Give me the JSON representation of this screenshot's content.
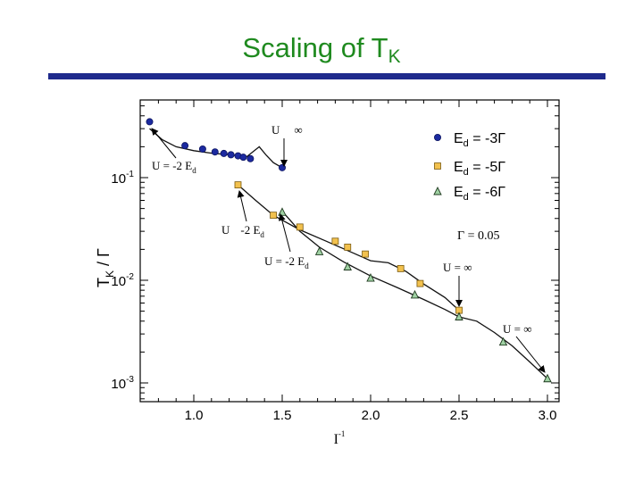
{
  "slide": {
    "title_main": "Scaling of T",
    "title_sub": "K",
    "colors": {
      "title": "#1f8a1f",
      "rule": "#1f2a8c"
    }
  },
  "chart_data": {
    "type": "scatter",
    "x": {
      "label_main": "I",
      "label_sup": "-1",
      "range": [
        0.7,
        3.0
      ],
      "ticks": [
        "1.0",
        "1.5",
        "2.0",
        "2.5",
        "3.0"
      ]
    },
    "y": {
      "label": "T",
      "label_sub": "K",
      "label_tail": " / Γ",
      "scale": "log",
      "range": [
        0.0007,
        0.5
      ],
      "ticks": [
        {
          "base": "10",
          "exp": "-1",
          "value": 0.1
        },
        {
          "base": "10",
          "exp": "-2",
          "value": 0.01
        },
        {
          "base": "10",
          "exp": "-3",
          "value": 0.001
        }
      ]
    },
    "series": [
      {
        "name_main": "E",
        "name_sub": "d",
        "name_tail": " = -3Γ",
        "marker": "circle",
        "color": "#1c2aa0",
        "points": [
          [
            0.75,
            0.35
          ],
          [
            0.95,
            0.205
          ],
          [
            1.05,
            0.19
          ],
          [
            1.12,
            0.178
          ],
          [
            1.17,
            0.172
          ],
          [
            1.21,
            0.167
          ],
          [
            1.25,
            0.163
          ],
          [
            1.28,
            0.158
          ],
          [
            1.32,
            0.153
          ],
          [
            1.5,
            0.125
          ]
        ],
        "curve": [
          [
            0.75,
            0.3
          ],
          [
            0.82,
            0.235
          ],
          [
            0.9,
            0.2
          ],
          [
            1.0,
            0.183
          ],
          [
            1.1,
            0.173
          ],
          [
            1.2,
            0.167
          ],
          [
            1.3,
            0.16
          ],
          [
            1.37,
            0.2
          ],
          [
            1.41,
            0.165
          ],
          [
            1.45,
            0.14
          ],
          [
            1.5,
            0.125
          ]
        ]
      },
      {
        "name_main": "E",
        "name_sub": "d",
        "name_tail": " = -5Γ",
        "marker": "square",
        "color": "#f2c14e",
        "points": [
          [
            1.25,
            0.085
          ],
          [
            1.45,
            0.043
          ],
          [
            1.6,
            0.033
          ],
          [
            1.8,
            0.024
          ],
          [
            1.87,
            0.021
          ],
          [
            1.97,
            0.018
          ],
          [
            2.17,
            0.013
          ],
          [
            2.28,
            0.0093
          ],
          [
            2.5,
            0.0051
          ]
        ],
        "curve": [
          [
            1.25,
            0.085
          ],
          [
            1.35,
            0.06
          ],
          [
            1.45,
            0.043
          ],
          [
            1.6,
            0.031
          ],
          [
            1.75,
            0.024
          ],
          [
            1.9,
            0.0185
          ],
          [
            2.0,
            0.0155
          ],
          [
            2.1,
            0.0148
          ],
          [
            2.2,
            0.0122
          ],
          [
            2.3,
            0.0092
          ],
          [
            2.42,
            0.0068
          ],
          [
            2.5,
            0.0051
          ]
        ]
      },
      {
        "name_main": "E",
        "name_sub": "d",
        "name_tail": " = -6Γ",
        "marker": "triangle",
        "color": "#9fd1a3",
        "points": [
          [
            1.5,
            0.046
          ],
          [
            1.71,
            0.019
          ],
          [
            1.87,
            0.0135
          ],
          [
            2.0,
            0.0105
          ],
          [
            2.25,
            0.0072
          ],
          [
            2.5,
            0.0044
          ],
          [
            2.75,
            0.0025
          ],
          [
            3.0,
            0.0011
          ]
        ],
        "curve": [
          [
            1.5,
            0.047
          ],
          [
            1.6,
            0.03
          ],
          [
            1.71,
            0.021
          ],
          [
            1.85,
            0.015
          ],
          [
            2.0,
            0.011
          ],
          [
            2.15,
            0.0085
          ],
          [
            2.3,
            0.0065
          ],
          [
            2.42,
            0.0052
          ],
          [
            2.5,
            0.0044
          ],
          [
            2.6,
            0.004
          ],
          [
            2.7,
            0.0031
          ],
          [
            2.8,
            0.0023
          ],
          [
            2.9,
            0.0016
          ],
          [
            3.0,
            0.0011
          ]
        ]
      }
    ],
    "annotations": {
      "gamma": "Γ = 0.05",
      "u_inf": "U = ∞",
      "u_top": "U",
      "u_top_tail": "∞",
      "u_ed_main": "U = -2 E",
      "u_ed_sub": "d",
      "u_ed_mid_main": "U",
      "u_ed_mid_tail": "-2 E",
      "u_ed_mid_sub": "d"
    }
  }
}
